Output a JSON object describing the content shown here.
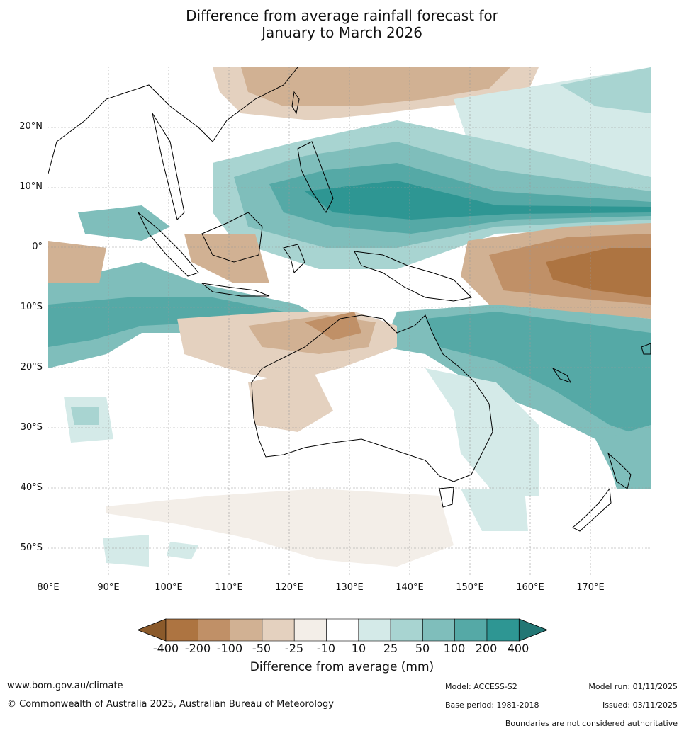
{
  "title_line1": "Difference from average rainfall forecast for",
  "title_line2": "January to March 2026",
  "lat_labels": [
    "20°N",
    "10°N",
    "0°",
    "10°S",
    "20°S",
    "30°S",
    "40°S",
    "50°S"
  ],
  "lon_labels": [
    "80°E",
    "90°E",
    "100°E",
    "110°E",
    "120°E",
    "130°E",
    "140°E",
    "150°E",
    "160°E",
    "170°E"
  ],
  "colorbar": {
    "labels": [
      "-400",
      "-200",
      "-100",
      "-50",
      "-25",
      "-10",
      "10",
      "25",
      "50",
      "100",
      "200",
      "400"
    ],
    "colors": [
      "#8b5a2b",
      "#ad7441",
      "#c09067",
      "#d1b193",
      "#e4d1bf",
      "#f3eee8",
      "#ffffff",
      "#d4eae8",
      "#a8d4d1",
      "#7fbebb",
      "#55a9a6",
      "#2e9693",
      "#237775"
    ],
    "title": "Difference from average (mm)"
  },
  "footer": {
    "website": "www.bom.gov.au/climate",
    "copyright": "© Commonwealth of Australia 2025, Australian Bureau of Meteorology",
    "model": "Model: ACCESS-S2",
    "base_period": "Base period: 1981-2018",
    "model_run": "Model run: 01/11/2025",
    "issued": "Issued: 03/11/2025",
    "disclaimer": "Boundaries are not considered authoritative"
  }
}
